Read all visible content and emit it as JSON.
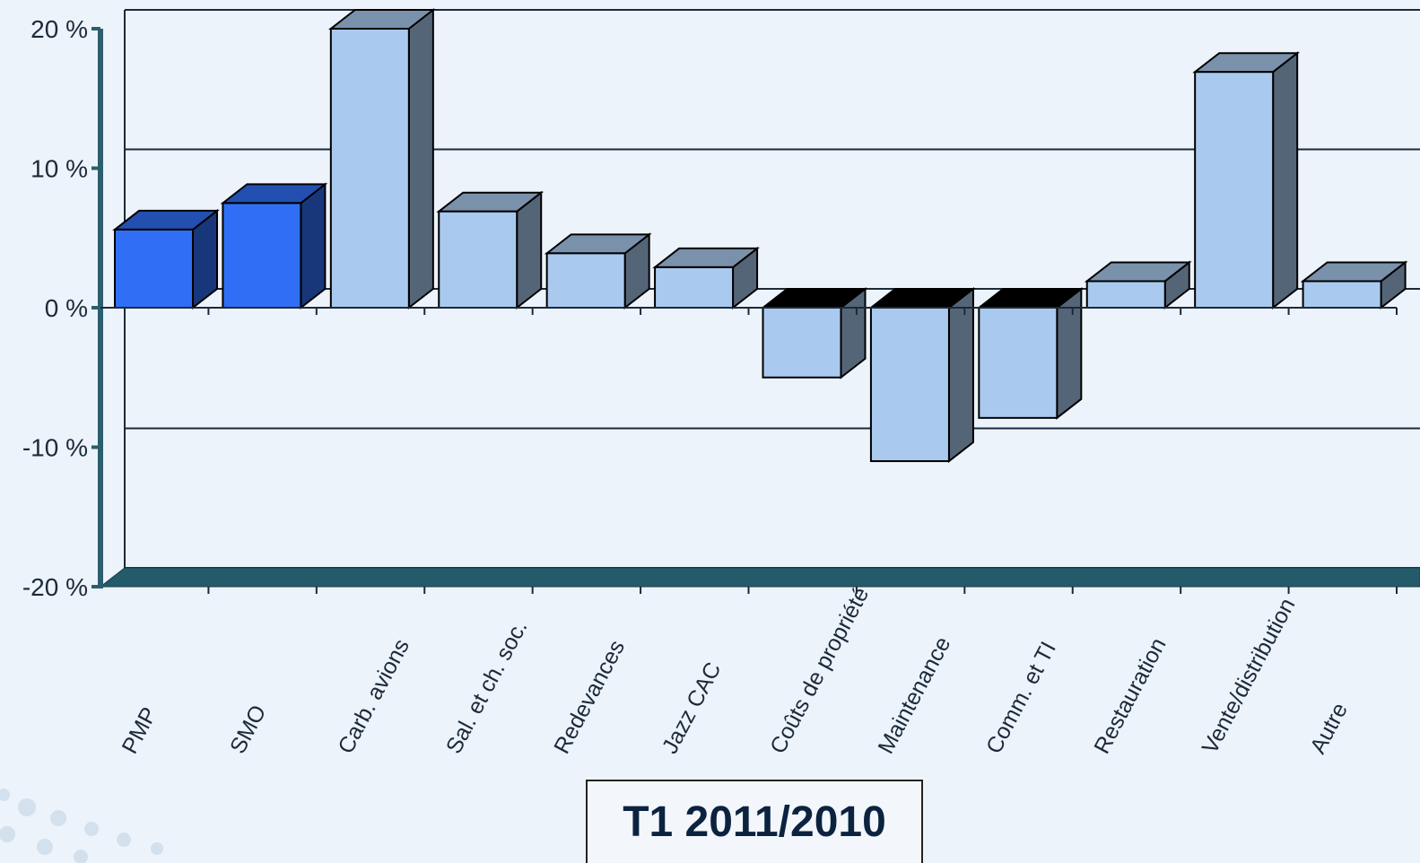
{
  "chart_data": {
    "type": "bar3d",
    "title": "T1 2011/2010",
    "categories": [
      "PMP",
      "SMO",
      "Carb. avions",
      "Sal. et ch. soc.",
      "Redevances",
      "Jazz CAC",
      "Coûts de propriété",
      "Maintenance",
      "Comm. et TI",
      "Restauration",
      "Vente/distribution",
      "Autre"
    ],
    "values": [
      5.6,
      7.5,
      20,
      6.9,
      3.9,
      2.9,
      -5,
      -11,
      -7.9,
      1.9,
      16.9,
      1.9
    ],
    "colors": [
      "#2f6ef5",
      "#2f6ef5",
      "#a9c9ef",
      "#a9c9ef",
      "#a9c9ef",
      "#a9c9ef",
      "#a9c9ef",
      "#a9c9ef",
      "#a9c9ef",
      "#a9c9ef",
      "#a9c9ef",
      "#a9c9ef"
    ],
    "ylim": [
      -20,
      20
    ],
    "yticks": [
      {
        "value": -20,
        "label": "-20 %"
      },
      {
        "value": -10,
        "label": "-10 %"
      },
      {
        "value": 0,
        "label": "0 %"
      },
      {
        "value": 10,
        "label": "10 %"
      },
      {
        "value": 20,
        "label": "20 %"
      }
    ],
    "grid": true
  }
}
